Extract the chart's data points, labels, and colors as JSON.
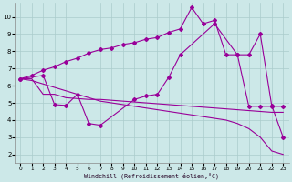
{
  "xlabel": "Windchill (Refroidissement éolien,°C)",
  "bg_color": "#cce8e8",
  "line_color": "#990099",
  "grid_color": "#aacccc",
  "x_ticks": [
    0,
    1,
    2,
    3,
    4,
    5,
    6,
    7,
    8,
    9,
    10,
    11,
    12,
    13,
    14,
    15,
    16,
    17,
    18,
    19,
    20,
    21,
    22,
    23
  ],
  "y_ticks": [
    2,
    3,
    4,
    5,
    6,
    7,
    8,
    9,
    10
  ],
  "ylim": [
    1.5,
    10.8
  ],
  "xlim": [
    -0.5,
    23.5
  ],
  "series1_x": [
    0,
    1,
    2,
    3,
    4,
    5,
    6,
    7,
    8,
    9,
    10,
    11,
    12,
    13,
    14,
    15,
    16,
    17,
    18,
    19,
    20,
    21,
    22,
    23
  ],
  "series1_y": [
    6.4,
    6.6,
    6.9,
    7.1,
    7.4,
    7.6,
    7.9,
    8.1,
    8.2,
    8.4,
    8.5,
    8.7,
    8.8,
    9.1,
    9.3,
    10.55,
    9.6,
    9.8,
    7.8,
    7.8,
    4.8,
    4.8,
    4.8,
    4.8
  ],
  "series2_x": [
    0,
    2,
    3,
    4,
    5,
    6,
    7,
    10,
    11,
    12,
    13,
    14,
    17,
    19,
    20,
    21,
    22,
    23
  ],
  "series2_y": [
    6.4,
    6.6,
    4.9,
    4.85,
    5.5,
    3.8,
    3.7,
    5.2,
    5.4,
    5.5,
    6.5,
    7.8,
    9.6,
    7.8,
    7.8,
    9.0,
    4.85,
    3.0
  ],
  "series3_x": [
    0,
    1,
    2,
    3,
    4,
    5,
    6,
    7,
    8,
    9,
    10,
    11,
    12,
    13,
    14,
    15,
    16,
    17,
    18,
    19,
    20,
    21,
    22,
    23
  ],
  "series3_y": [
    6.4,
    6.4,
    5.5,
    5.5,
    5.3,
    5.25,
    5.2,
    5.2,
    5.15,
    5.1,
    5.05,
    5.0,
    4.95,
    4.9,
    4.85,
    4.8,
    4.75,
    4.7,
    4.65,
    4.6,
    4.55,
    4.5,
    4.45,
    4.45
  ],
  "series4_x": [
    0,
    1,
    2,
    3,
    4,
    5,
    6,
    7,
    8,
    9,
    10,
    11,
    12,
    13,
    14,
    15,
    16,
    17,
    18,
    19,
    20,
    21,
    22,
    23
  ],
  "series4_y": [
    6.4,
    6.3,
    6.1,
    5.9,
    5.7,
    5.5,
    5.3,
    5.1,
    5.0,
    4.9,
    4.8,
    4.7,
    4.6,
    4.5,
    4.4,
    4.3,
    4.2,
    4.1,
    4.0,
    3.8,
    3.5,
    3.0,
    2.2,
    2.0
  ]
}
